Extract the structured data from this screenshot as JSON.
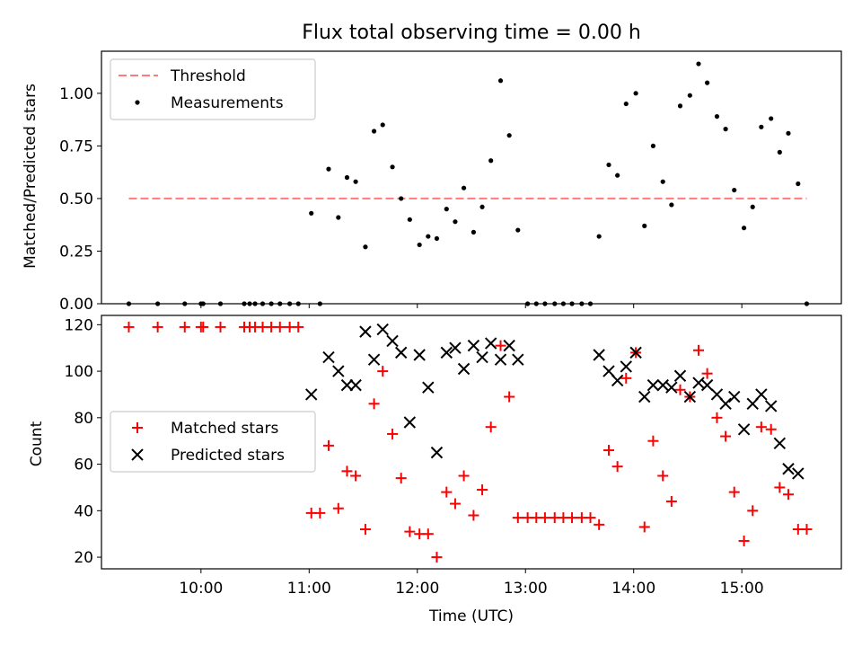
{
  "chart_data": [
    {
      "type": "scatter",
      "title": "Flux total observing time = 0.00 h",
      "xlabel": "",
      "ylabel": "Matched/Predicted stars",
      "xlim": [
        9.08,
        15.92
      ],
      "ylim": [
        0.0,
        1.2
      ],
      "yticks": [
        0.0,
        0.25,
        0.5,
        0.75,
        1.0
      ],
      "ytick_labels": [
        "0.00",
        "0.25",
        "0.50",
        "0.75",
        "1.00"
      ],
      "legend_position": "top-left",
      "threshold": {
        "name": "Threshold",
        "value": 0.5,
        "x_range": [
          9.333,
          15.6
        ],
        "color": "#ff7b7b",
        "style": "dashed"
      },
      "series": [
        {
          "name": "Measurements",
          "color": "#000000",
          "marker": "dot",
          "x": [
            9.333,
            9.6,
            9.85,
            10.0,
            10.02,
            10.18,
            10.4,
            10.45,
            10.5,
            10.57,
            10.65,
            10.73,
            10.82,
            10.9,
            11.02,
            11.1,
            11.18,
            11.27,
            11.35,
            11.43,
            11.52,
            11.6,
            11.68,
            11.77,
            11.85,
            11.93,
            12.02,
            12.1,
            12.18,
            12.27,
            12.35,
            12.43,
            12.52,
            12.6,
            12.68,
            12.77,
            12.85,
            12.93,
            13.02,
            13.1,
            13.18,
            13.27,
            13.35,
            13.43,
            13.52,
            13.6,
            13.68,
            13.77,
            13.85,
            13.93,
            14.02,
            14.1,
            14.18,
            14.27,
            14.35,
            14.43,
            14.52,
            14.6,
            14.68,
            14.77,
            14.85,
            14.93,
            15.02,
            15.1,
            15.18,
            15.27,
            15.35,
            15.43,
            15.52,
            15.6
          ],
          "y": [
            0,
            0,
            0,
            0,
            0,
            0,
            0,
            0,
            0,
            0,
            0,
            0,
            0,
            0,
            0.43,
            0,
            0.64,
            0.41,
            0.6,
            0.58,
            0.27,
            0.82,
            0.85,
            0.65,
            0.5,
            0.4,
            0.28,
            0.32,
            0.31,
            0.45,
            0.39,
            0.55,
            0.34,
            0.46,
            0.68,
            1.06,
            0.8,
            0.35,
            0,
            0,
            0,
            0,
            0,
            0,
            0,
            0,
            0.32,
            0.66,
            0.61,
            0.95,
            1.0,
            0.37,
            0.75,
            0.58,
            0.47,
            0.94,
            0.99,
            1.14,
            1.05,
            0.89,
            0.83,
            0.54,
            0.36,
            0.46,
            0.84,
            0.88,
            0.72,
            0.81,
            0.57,
            0.0
          ]
        }
      ]
    },
    {
      "type": "scatter",
      "title": "",
      "xlabel": "Time (UTC)",
      "ylabel": "Count",
      "xlim": [
        9.08,
        15.92
      ],
      "ylim": [
        15,
        124
      ],
      "yticks": [
        20,
        40,
        60,
        80,
        100,
        120
      ],
      "ytick_labels": [
        "20",
        "40",
        "60",
        "80",
        "100",
        "120"
      ],
      "xticks": [
        10,
        11,
        12,
        13,
        14,
        15
      ],
      "xtick_labels": [
        "10:00",
        "11:00",
        "12:00",
        "13:00",
        "14:00",
        "15:00"
      ],
      "legend_position": "center-left",
      "series": [
        {
          "name": "Matched stars",
          "color": "#ff0000",
          "marker": "plus",
          "x": [
            9.333,
            9.6,
            9.85,
            10.0,
            10.02,
            10.18,
            10.4,
            10.45,
            10.5,
            10.57,
            10.65,
            10.73,
            10.82,
            10.9,
            11.02,
            11.1,
            11.18,
            11.27,
            11.35,
            11.43,
            11.52,
            11.6,
            11.68,
            11.77,
            11.85,
            11.93,
            12.02,
            12.1,
            12.18,
            12.27,
            12.35,
            12.43,
            12.52,
            12.6,
            12.68,
            12.77,
            12.85,
            12.93,
            13.02,
            13.1,
            13.18,
            13.27,
            13.35,
            13.43,
            13.52,
            13.6,
            13.68,
            13.77,
            13.85,
            13.93,
            14.02,
            14.1,
            14.18,
            14.27,
            14.35,
            14.43,
            14.52,
            14.6,
            14.68,
            14.77,
            14.85,
            14.93,
            15.02,
            15.1,
            15.18,
            15.27,
            15.35,
            15.43,
            15.52,
            15.6
          ],
          "y": [
            119,
            119,
            119,
            119,
            119,
            119,
            119,
            119,
            119,
            119,
            119,
            119,
            119,
            119,
            39,
            39,
            68,
            41,
            57,
            55,
            32,
            86,
            100,
            73,
            54,
            31,
            30,
            30,
            20,
            48,
            43,
            55,
            38,
            49,
            76,
            111,
            89,
            37,
            37,
            37,
            37,
            37,
            37,
            37,
            37,
            37,
            34,
            66,
            59,
            97,
            108,
            33,
            70,
            55,
            44,
            92,
            89,
            109,
            99,
            80,
            72,
            48,
            27,
            40,
            76,
            75,
            50,
            47,
            32,
            32
          ]
        },
        {
          "name": "Predicted stars",
          "color": "#000000",
          "marker": "x",
          "x": [
            11.02,
            11.18,
            11.27,
            11.35,
            11.43,
            11.52,
            11.6,
            11.68,
            11.77,
            11.85,
            11.93,
            12.02,
            12.1,
            12.18,
            12.27,
            12.35,
            12.43,
            12.52,
            12.6,
            12.68,
            12.77,
            12.85,
            12.93,
            13.68,
            13.77,
            13.85,
            13.93,
            14.02,
            14.1,
            14.18,
            14.27,
            14.35,
            14.43,
            14.52,
            14.6,
            14.68,
            14.77,
            14.85,
            14.93,
            15.02,
            15.1,
            15.18,
            15.27,
            15.35,
            15.43,
            15.52
          ],
          "y": [
            90,
            106,
            100,
            94,
            94,
            117,
            105,
            118,
            113,
            108,
            78,
            107,
            93,
            65,
            108,
            110,
            101,
            111,
            106,
            112,
            105,
            111,
            105,
            107,
            100,
            96,
            102,
            108,
            89,
            94,
            94,
            93,
            98,
            89,
            95,
            94,
            90,
            86,
            89,
            75,
            86,
            90,
            85,
            69,
            58,
            56
          ]
        }
      ]
    }
  ]
}
